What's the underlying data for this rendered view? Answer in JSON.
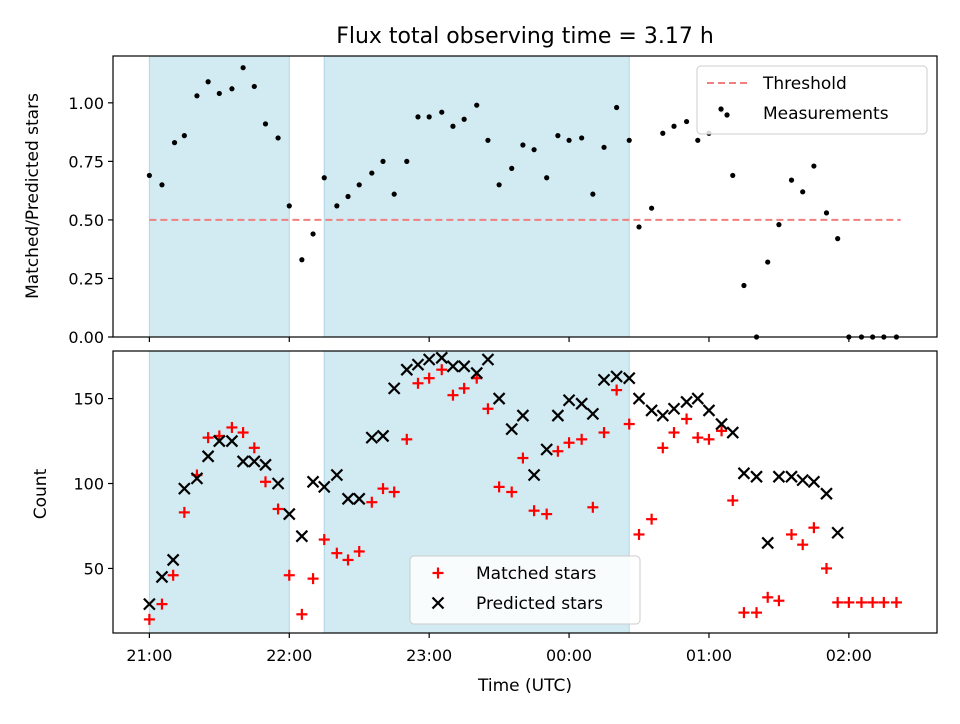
{
  "title": "Flux total observing time = 3.17 h",
  "colors": {
    "shade": "#add8e6",
    "threshold": "#f08080",
    "matched": "#ff0000",
    "predicted": "#000000",
    "measure": "#000000"
  },
  "chart_data": [
    {
      "type": "scatter",
      "ylabel": "Matched/Predicted stars",
      "ylim": [
        0,
        1.2
      ],
      "yticks": [
        "0.00",
        "0.25",
        "0.50",
        "0.75",
        "1.00"
      ],
      "xlim": [
        -0.26,
        5.63
      ],
      "shaded_intervals": [
        [
          0,
          1.0
        ],
        [
          1.25,
          3.43
        ]
      ],
      "threshold": {
        "name": "Threshold",
        "value": 0.5,
        "x_range": [
          0,
          5.37
        ]
      },
      "series": [
        {
          "name": "Measurements",
          "marker": "dot",
          "x": [
            0,
            0.09,
            0.18,
            0.25,
            0.34,
            0.42,
            0.5,
            0.59,
            0.67,
            0.75,
            0.83,
            0.92,
            1.0,
            1.09,
            1.17,
            1.25,
            1.34,
            1.42,
            1.5,
            1.59,
            1.67,
            1.75,
            1.84,
            1.92,
            2.0,
            2.09,
            2.17,
            2.25,
            2.34,
            2.42,
            2.5,
            2.59,
            2.67,
            2.75,
            2.84,
            2.92,
            3.0,
            3.09,
            3.17,
            3.25,
            3.34,
            3.43,
            3.5,
            3.59,
            3.67,
            3.75,
            3.84,
            3.92,
            4.0,
            4.09,
            4.13,
            4.17,
            4.25,
            4.34,
            4.42,
            4.5,
            4.59,
            4.67,
            4.75,
            4.84,
            4.92,
            5.0,
            5.09,
            5.17,
            5.25,
            5.34
          ],
          "y": [
            0.69,
            0.65,
            0.83,
            0.86,
            1.03,
            1.09,
            1.04,
            1.06,
            1.15,
            1.07,
            0.91,
            0.85,
            0.56,
            0.33,
            0.44,
            0.68,
            0.56,
            0.6,
            0.65,
            0.7,
            0.75,
            0.61,
            0.75,
            0.94,
            0.94,
            0.96,
            0.9,
            0.93,
            0.99,
            0.84,
            0.65,
            0.72,
            0.82,
            0.8,
            0.68,
            0.86,
            0.84,
            0.85,
            0.61,
            0.81,
            0.98,
            0.84,
            0.47,
            0.55,
            0.87,
            0.9,
            0.92,
            0.84,
            0.87,
            0.97,
            0.95,
            0.69,
            0.22,
            0.0,
            0.32,
            0.48,
            0.67,
            0.62,
            0.73,
            0.53,
            0.42,
            0.0,
            0.0,
            0.0,
            0.0,
            0.0
          ]
        }
      ],
      "legend": {
        "placement": "top-right",
        "entries": [
          "Threshold",
          "Measurements"
        ]
      }
    },
    {
      "type": "scatter",
      "xlabel": "Time (UTC)",
      "ylabel": "Count",
      "ylim": [
        12,
        178
      ],
      "yticks": [
        "50",
        "100",
        "150"
      ],
      "xlim": [
        -0.26,
        5.63
      ],
      "xticks": [
        "21:00",
        "22:00",
        "23:00",
        "00:00",
        "01:00",
        "02:00"
      ],
      "shaded_intervals": [
        [
          0,
          1.0
        ],
        [
          1.25,
          3.43
        ]
      ],
      "series": [
        {
          "name": "Matched stars",
          "marker": "plus",
          "x": [
            0,
            0.09,
            0.17,
            0.25,
            0.34,
            0.42,
            0.5,
            0.59,
            0.67,
            0.75,
            0.83,
            0.92,
            1.0,
            1.09,
            1.17,
            1.25,
            1.34,
            1.42,
            1.5,
            1.59,
            1.67,
            1.75,
            1.84,
            1.92,
            2.0,
            2.09,
            2.17,
            2.25,
            2.34,
            2.42,
            2.5,
            2.59,
            2.67,
            2.75,
            2.84,
            2.92,
            3.0,
            3.09,
            3.17,
            3.25,
            3.34,
            3.43,
            3.5,
            3.59,
            3.67,
            3.75,
            3.84,
            3.92,
            4.0,
            4.09,
            4.17,
            4.25,
            4.34,
            4.42,
            4.5,
            4.59,
            4.67,
            4.75,
            4.84,
            4.92,
            5.0,
            5.09,
            5.17,
            5.25,
            5.34
          ],
          "y": [
            20,
            29,
            46,
            83,
            105,
            127,
            128,
            133,
            130,
            121,
            101,
            85,
            46,
            23,
            44,
            67,
            59,
            55,
            60,
            89,
            97,
            95,
            126,
            159,
            162,
            167,
            152,
            156,
            162,
            144,
            98,
            95,
            115,
            84,
            82,
            119,
            124,
            126,
            86,
            130,
            155,
            135,
            70,
            79,
            121,
            130,
            138,
            127,
            126,
            131,
            90,
            24,
            24,
            33,
            31,
            70,
            64,
            74,
            50,
            30,
            30,
            30,
            30,
            30,
            30
          ]
        },
        {
          "name": "Predicted stars",
          "marker": "x",
          "x": [
            0,
            0.09,
            0.17,
            0.25,
            0.34,
            0.42,
            0.5,
            0.59,
            0.67,
            0.75,
            0.83,
            0.92,
            1.0,
            1.09,
            1.17,
            1.25,
            1.34,
            1.42,
            1.5,
            1.59,
            1.67,
            1.75,
            1.84,
            1.92,
            2.0,
            2.09,
            2.17,
            2.25,
            2.34,
            2.42,
            2.5,
            2.59,
            2.67,
            2.75,
            2.84,
            2.92,
            3.0,
            3.09,
            3.17,
            3.25,
            3.34,
            3.43,
            3.5,
            3.59,
            3.67,
            3.75,
            3.84,
            3.92,
            4.0,
            4.09,
            4.17,
            4.25,
            4.34,
            4.42,
            4.5,
            4.59,
            4.67,
            4.75,
            4.84,
            4.92
          ],
          "y": [
            29,
            45,
            55,
            97,
            103,
            116,
            125,
            125,
            113,
            113,
            111,
            100,
            82,
            69,
            101,
            98,
            105,
            91,
            91,
            127,
            128,
            156,
            167,
            170,
            173,
            174,
            169,
            169,
            165,
            173,
            150,
            132,
            140,
            105,
            120,
            140,
            149,
            147,
            141,
            161,
            163,
            162,
            150,
            143,
            140,
            144,
            148,
            150,
            143,
            135,
            130,
            106,
            104,
            65,
            104,
            104,
            102,
            101,
            94,
            71
          ]
        }
      ],
      "legend": {
        "placement": "lower-center",
        "entries": [
          "Matched stars",
          "Predicted stars"
        ]
      }
    }
  ]
}
